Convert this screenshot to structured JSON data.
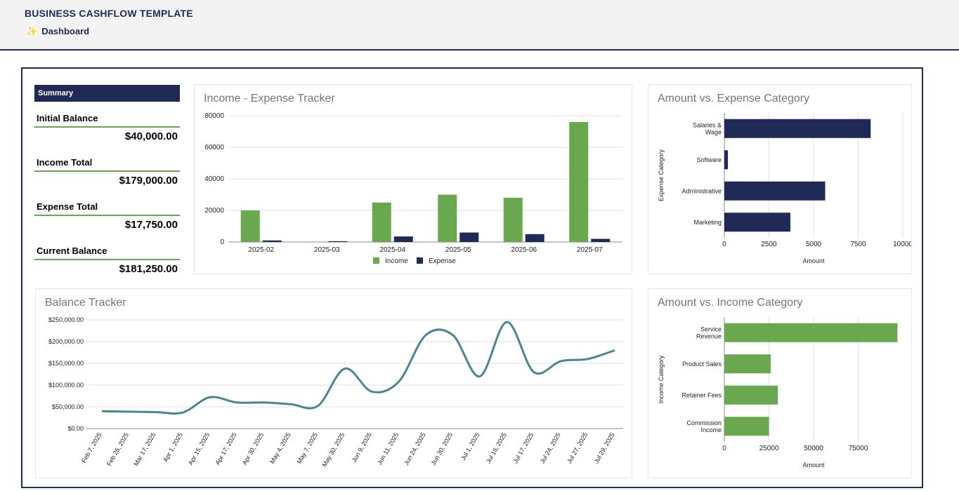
{
  "header": {
    "title": "BUSINESS CASHFLOW TEMPLATE",
    "tab_icon": "sparkle-icon",
    "tab_label": "Dashboard"
  },
  "summary": {
    "heading": "Summary",
    "items": [
      {
        "label": "Initial Balance",
        "value": "$40,000.00"
      },
      {
        "label": "Income Total",
        "value": "$179,000.00"
      },
      {
        "label": "Expense Total",
        "value": "$17,750.00"
      },
      {
        "label": "Current Balance",
        "value": "$181,250.00"
      }
    ]
  },
  "colors": {
    "navy": "#1f2a56",
    "green": "#6aa84f",
    "teal": "#4a8593"
  },
  "chart_data": [
    {
      "id": "income-expense",
      "type": "bar",
      "title": "Income  - Expense Tracker",
      "categories": [
        "2025-02",
        "2025-03",
        "2025-04",
        "2025-05",
        "2025-06",
        "2025-07"
      ],
      "series": [
        {
          "name": "Income",
          "color": "#6aa84f",
          "values": [
            20000,
            0,
            25000,
            30000,
            28000,
            76000
          ]
        },
        {
          "name": "Expense",
          "color": "#1f2a56",
          "values": [
            1000,
            500,
            3500,
            6000,
            5000,
            2000
          ]
        }
      ],
      "yticks": [
        "0",
        "20000",
        "40000",
        "60000",
        "80000"
      ],
      "ylim": [
        0,
        80000
      ],
      "legend": "bottom"
    },
    {
      "id": "expense-category",
      "type": "bar",
      "orientation": "horizontal",
      "title": "Amount vs. Expense Category",
      "categories": [
        [
          "Salaries &",
          "Wage"
        ],
        [
          "Software"
        ],
        [
          "Administrative"
        ],
        [
          "Marketing"
        ]
      ],
      "values": [
        8200,
        200,
        5650,
        3700
      ],
      "color": "#1f2a56",
      "xticks": [
        "0",
        "2500",
        "5000",
        "7500",
        "10000"
      ],
      "xlim": [
        0,
        10000
      ],
      "xlabel": "Amount",
      "ylabel": "Expense Category"
    },
    {
      "id": "balance",
      "type": "line",
      "title": "Balance Tracker",
      "x": [
        "Feb 7, 2025",
        "Feb 26, 2025",
        "Mar 17, 2025",
        "Apr 1, 2025",
        "Apr 15, 2025",
        "Apr 17, 2025",
        "Apr 30, 2025",
        "May 4, 2025",
        "May 7, 2025",
        "May 30, 2025",
        "Jun 9, 2025",
        "Jun 11, 2025",
        "Jun 24, 2025",
        "Jun 30, 2025",
        "Jul 1, 2025",
        "Jul 16, 2025",
        "Jul 17, 2025",
        "Jul 24, 2025",
        "Jul 27, 2025",
        "Jul 29, 2025"
      ],
      "values": [
        40000,
        39000,
        38000,
        37000,
        72000,
        60000,
        60000,
        56000,
        52000,
        138000,
        85000,
        108000,
        215000,
        215000,
        120000,
        245000,
        130000,
        155000,
        160000,
        180000
      ],
      "yticks": [
        "$0.00",
        "$50,000.00",
        "$100,000.00",
        "$150,000.00",
        "$200,000.00",
        "$250,000.00"
      ],
      "ylim": [
        0,
        250000
      ],
      "color": "#4a8593"
    },
    {
      "id": "income-category",
      "type": "bar",
      "orientation": "horizontal",
      "title": "Amount vs. Income Category",
      "categories": [
        [
          "Service",
          "Revenue"
        ],
        [
          "Product Sales"
        ],
        [
          "Retainer Fees"
        ],
        [
          "Commission",
          "Income"
        ]
      ],
      "values": [
        97000,
        26000,
        30000,
        25000
      ],
      "color": "#6aa84f",
      "xticks": [
        "0",
        "25000",
        "50000",
        "75000"
      ],
      "xlim": [
        0,
        100000
      ],
      "xlabel": "Amount",
      "ylabel": "Income Category"
    }
  ]
}
